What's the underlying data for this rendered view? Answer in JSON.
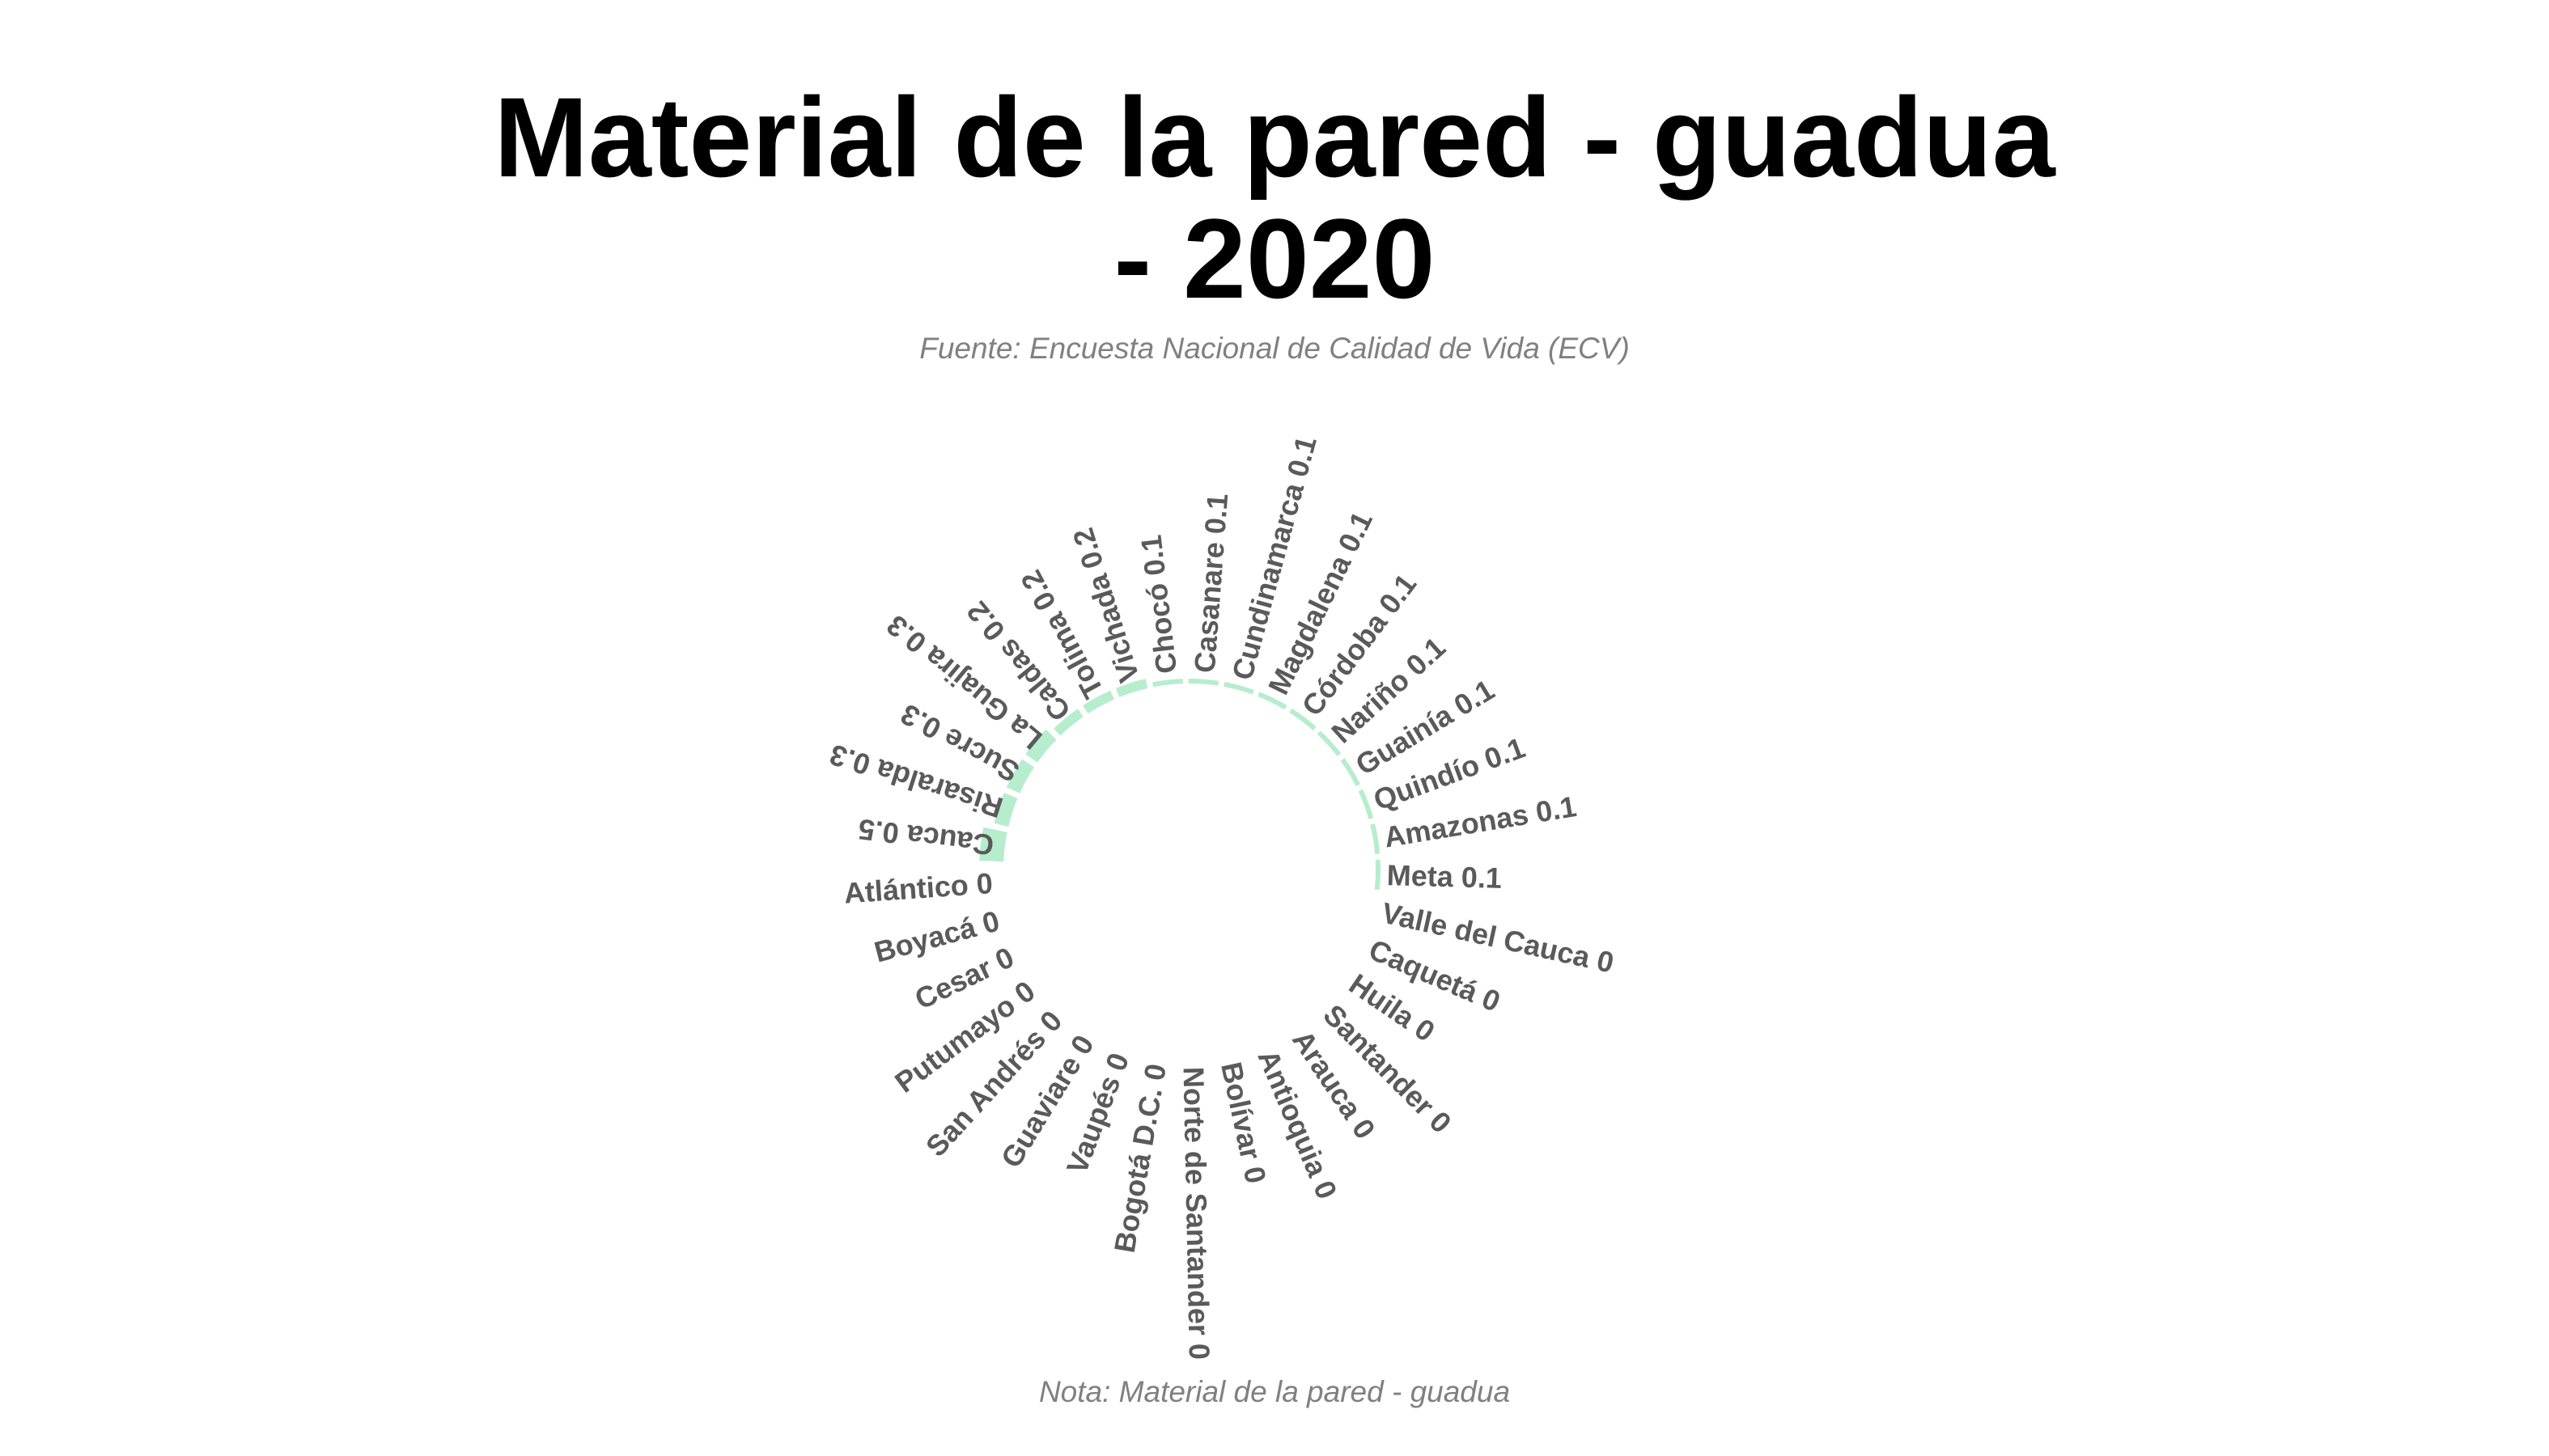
{
  "title_line1": "Material de la pared - guadua",
  "title_line2": "- 2020",
  "subtitle": "Fuente: Encuesta Nacional de Calidad de Vida (ECV)",
  "note": "Nota: Material de la pared - guadua",
  "colors": {
    "bar": "#2ecc71",
    "label": "#5a5a5a",
    "muted": "#808080"
  },
  "chart_data": {
    "type": "bar",
    "layout": "circular",
    "categories": [
      "Cauca",
      "Risaralda",
      "Sucre",
      "La Guajira",
      "Caldas",
      "Tolima",
      "Vichada",
      "Chocó",
      "Casanare",
      "Cundinamarca",
      "Magdalena",
      "Córdoba",
      "Nariño",
      "Guainía",
      "Quindío",
      "Amazonas",
      "Meta",
      "Valle del Cauca",
      "Caquetá",
      "Huila",
      "Santander",
      "Arauca",
      "Antioquia",
      "Bolívar",
      "Norte de Santander",
      "Bogotá D.C.",
      "Vaupés",
      "Guaviare",
      "San Andrés",
      "Putumayo",
      "Cesar",
      "Boyacá",
      "Atlántico"
    ],
    "values": [
      0.5,
      0.3,
      0.3,
      0.3,
      0.2,
      0.2,
      0.2,
      0.1,
      0.1,
      0.1,
      0.1,
      0.1,
      0.1,
      0.1,
      0.1,
      0.1,
      0.1,
      0,
      0,
      0,
      0,
      0,
      0,
      0,
      0,
      0,
      0,
      0,
      0,
      0,
      0,
      0,
      0
    ],
    "title": "Material de la pared - guadua - 2020",
    "grid": false,
    "legend": "none"
  }
}
